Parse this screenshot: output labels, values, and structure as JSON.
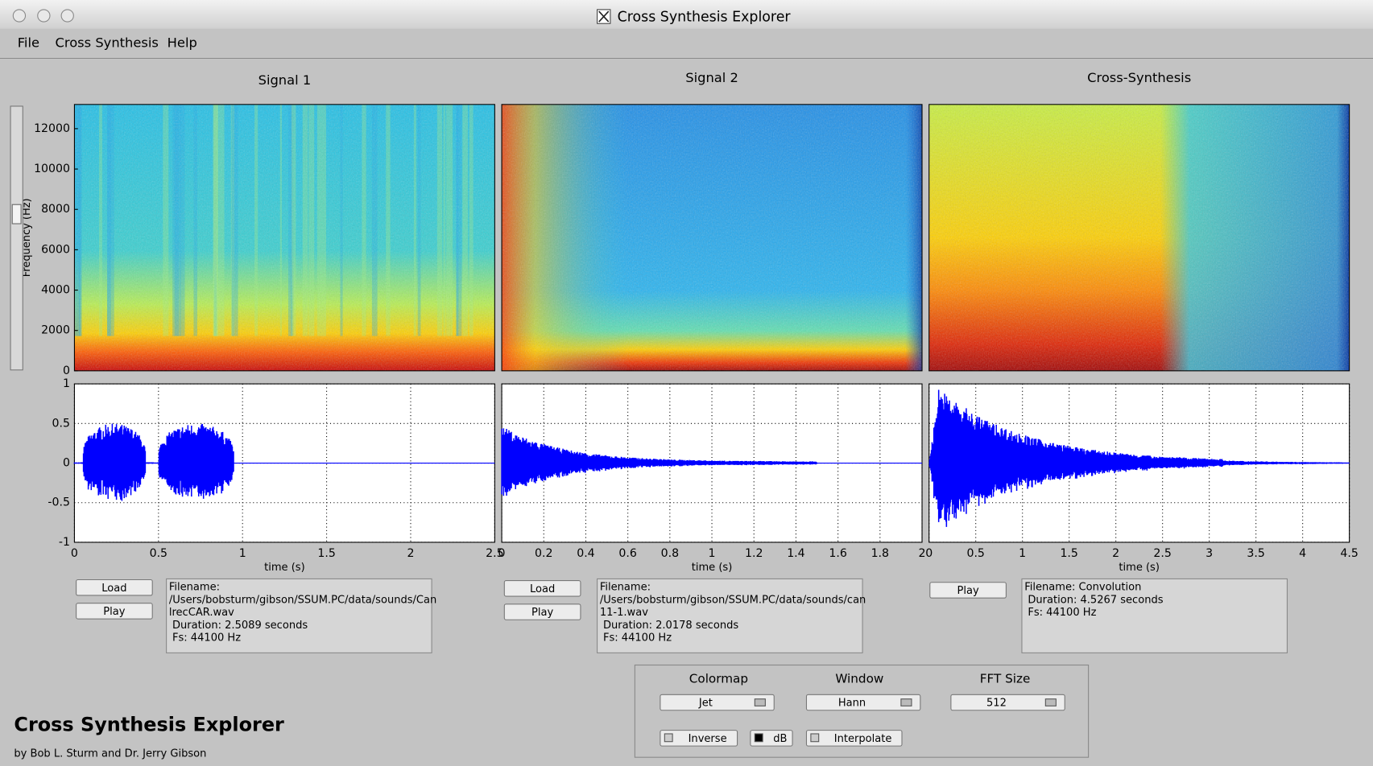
{
  "window": {
    "title": "Cross Synthesis Explorer"
  },
  "menu": [
    "File",
    "Cross Synthesis",
    "Help"
  ],
  "spectrogram_axis": {
    "ylabel": "Frequency (Hz)",
    "ylim": [
      0,
      13200
    ],
    "yticks": [
      0,
      2000,
      4000,
      6000,
      8000,
      10000,
      12000
    ]
  },
  "waveform_axis": {
    "ylim": [
      -1,
      1
    ],
    "yticks": [
      -1,
      -0.5,
      0,
      0.5,
      1
    ]
  },
  "panels": [
    {
      "title": "Signal 1",
      "xlim": [
        0,
        2.5
      ],
      "xticks": [
        0,
        0.5,
        1,
        1.5,
        2,
        2.5
      ],
      "xlabel": "time (s)",
      "buttons": [
        "Load",
        "Play"
      ],
      "info": [
        "Filename:",
        "/Users/bobsturm/gibson/SSUM.PC/data/sounds/Can",
        "lrecCAR.wav",
        " Duration: 2.5089 seconds",
        " Fs: 44100 Hz"
      ]
    },
    {
      "title": "Signal 2",
      "xlim": [
        0,
        2
      ],
      "xticks": [
        0,
        0.2,
        0.4,
        0.6,
        0.8,
        1,
        1.2,
        1.4,
        1.6,
        1.8,
        2
      ],
      "xlabel": "time (s)",
      "buttons": [
        "Load",
        "Play"
      ],
      "info": [
        "Filename:",
        "/Users/bobsturm/gibson/SSUM.PC/data/sounds/can",
        "11-1.wav",
        " Duration: 2.0178 seconds",
        " Fs: 44100 Hz"
      ]
    },
    {
      "title": "Cross-Synthesis",
      "xlim": [
        0,
        4.5
      ],
      "xticks": [
        0,
        0.5,
        1,
        1.5,
        2,
        2.5,
        3,
        3.5,
        4,
        4.5
      ],
      "xlabel": "time (s)",
      "buttons": [
        "Play"
      ],
      "info": [
        "Filename: Convolution",
        " Duration: 4.5267 seconds",
        " Fs: 44100 Hz"
      ]
    }
  ],
  "controls": {
    "labels": [
      "Colormap",
      "Window",
      "FFT Size"
    ],
    "popups": [
      "Jet",
      "Hann",
      "512"
    ],
    "checkboxes": [
      {
        "label": "Inverse",
        "checked": false
      },
      {
        "label": "dB",
        "checked": true
      },
      {
        "label": "Interpolate",
        "checked": false
      }
    ]
  },
  "footer": {
    "title": "Cross Synthesis Explorer",
    "credit": "by Bob L. Sturm and Dr. Jerry Gibson"
  }
}
